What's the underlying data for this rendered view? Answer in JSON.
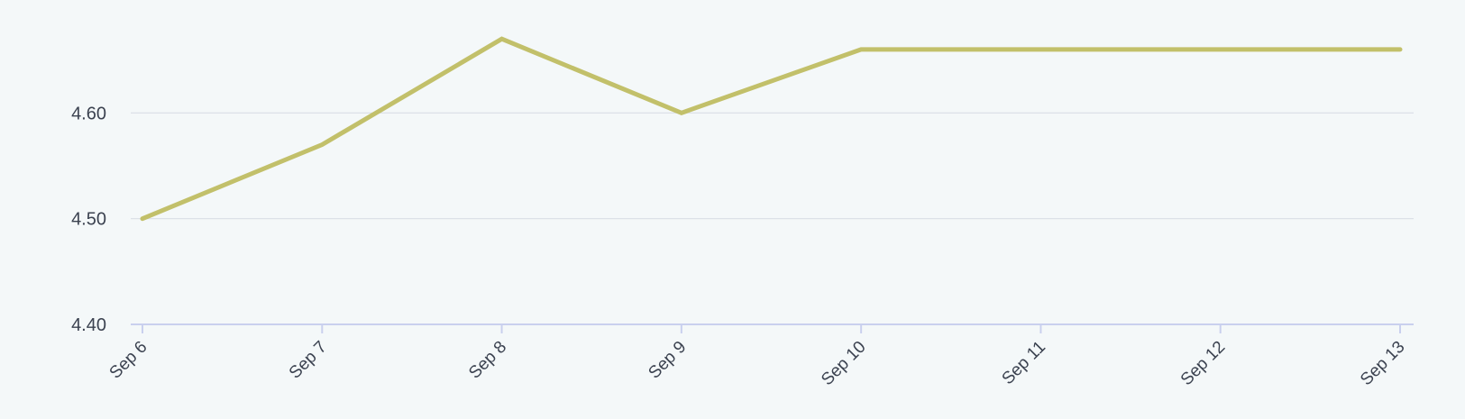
{
  "chart_data": {
    "type": "line",
    "title": "",
    "xlabel": "",
    "ylabel": "",
    "categories": [
      "Sep 6",
      "Sep 7",
      "Sep 8",
      "Sep 9",
      "Sep 10",
      "Sep 11",
      "Sep 12",
      "Sep 13"
    ],
    "series": [
      {
        "values": [
          4.5,
          4.57,
          4.67,
          4.6,
          4.66,
          4.66,
          4.66,
          4.66
        ],
        "color": "#c2c06a"
      }
    ],
    "ylim": [
      4.4,
      4.7
    ],
    "yticks": [
      "4.40",
      "4.50",
      "4.60"
    ],
    "grid": true,
    "legend": "none",
    "colors": {
      "background": "#f4f8f9",
      "grid": "#d9dee6",
      "axis": "#c9d0ee",
      "label": "#3b4250",
      "line": "#c2c06a"
    }
  }
}
